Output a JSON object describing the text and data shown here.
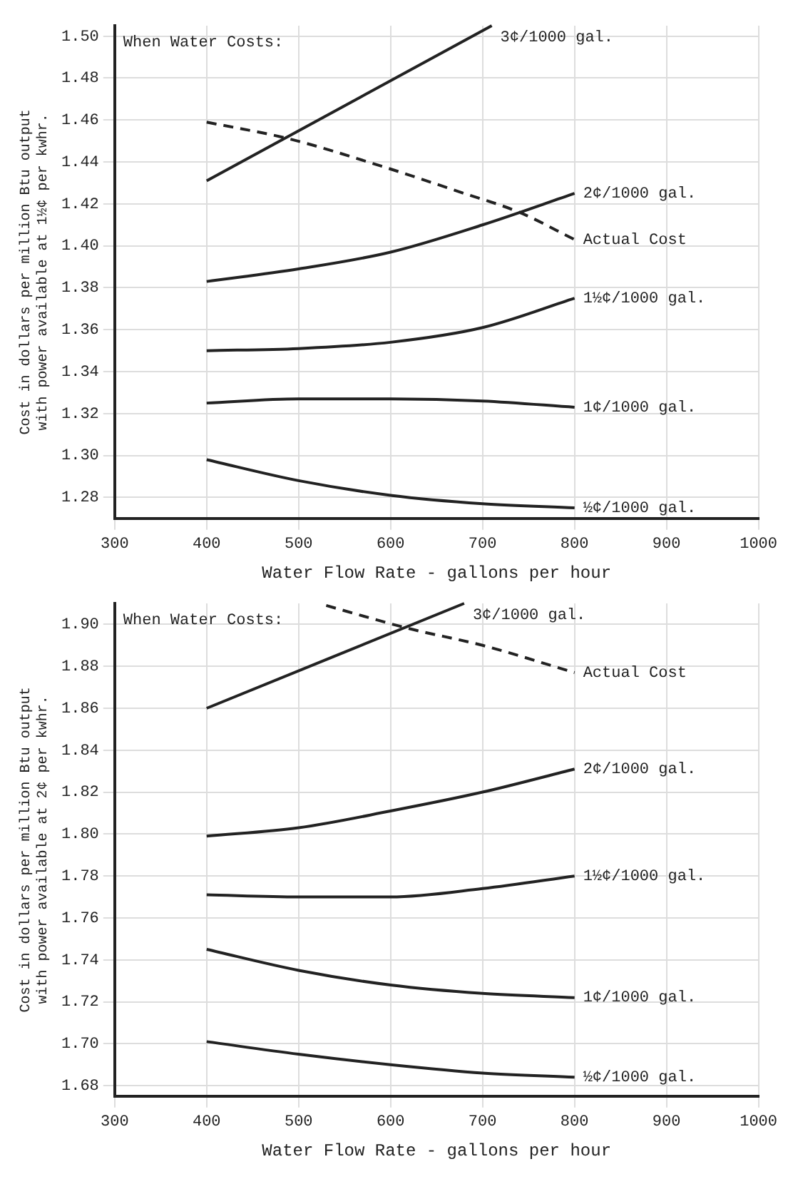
{
  "chart_data": [
    {
      "type": "line",
      "xlabel": "Water Flow Rate - gallons per hour",
      "ylabel": "Cost in dollars per million Btu output with power available at 1½¢ per kwhr.",
      "annotations": [
        "When Water Costs:"
      ],
      "xlim": [
        300,
        1000
      ],
      "xticks": [
        300,
        400,
        500,
        600,
        700,
        800,
        900,
        1000
      ],
      "ylim": [
        1.27,
        1.505
      ],
      "yticks": [
        {
          "value": 1.28,
          "label": "1.28"
        },
        {
          "value": 1.3,
          "label": "1.30"
        },
        {
          "value": 1.32,
          "label": "1.32"
        },
        {
          "value": 1.34,
          "label": "1.34"
        },
        {
          "value": 1.36,
          "label": "1.36"
        },
        {
          "value": 1.38,
          "label": "1.38"
        },
        {
          "value": 1.4,
          "label": "1.40"
        },
        {
          "value": 1.42,
          "label": "1.42"
        },
        {
          "value": 1.44,
          "label": "1.44"
        },
        {
          "value": 1.46,
          "label": "1.46"
        },
        {
          "value": 1.48,
          "label": "1.48"
        },
        {
          "value": 1.5,
          "label": "1.50"
        }
      ],
      "grid": true,
      "legend": false,
      "marker": "none",
      "series": [
        {
          "name": "3¢/1000 gal.",
          "color": "#222222",
          "x": [
            400,
            710
          ],
          "values": [
            1.431,
            1.505
          ]
        },
        {
          "name": "Actual Cost",
          "color": "#222222",
          "line_style": "dashed",
          "x": [
            400,
            490,
            590,
            680,
            740,
            800
          ],
          "values": [
            1.459,
            1.451,
            1.438,
            1.425,
            1.416,
            1.403
          ]
        },
        {
          "name": "2¢/1000 gal.",
          "color": "#222222",
          "x": [
            400,
            500,
            600,
            700,
            800
          ],
          "values": [
            1.383,
            1.389,
            1.397,
            1.41,
            1.425
          ]
        },
        {
          "name": "1½¢/1000 gal.",
          "color": "#222222",
          "x": [
            400,
            500,
            600,
            700,
            800
          ],
          "values": [
            1.35,
            1.351,
            1.354,
            1.361,
            1.375
          ]
        },
        {
          "name": "1¢/1000 gal.",
          "color": "#222222",
          "x": [
            400,
            500,
            600,
            700,
            800
          ],
          "values": [
            1.325,
            1.327,
            1.327,
            1.326,
            1.323
          ]
        },
        {
          "name": "½¢/1000 gal.",
          "color": "#222222",
          "x": [
            400,
            500,
            600,
            700,
            800
          ],
          "values": [
            1.298,
            1.288,
            1.281,
            1.277,
            1.275
          ]
        }
      ]
    },
    {
      "type": "line",
      "xlabel": "Water Flow Rate - gallons per hour",
      "ylabel": "Cost in dollars per million Btu output with power available at 2¢ per kwhr.",
      "annotations": [
        "When Water Costs:"
      ],
      "xlim": [
        300,
        1000
      ],
      "xticks": [
        300,
        400,
        500,
        600,
        700,
        800,
        900,
        1000
      ],
      "ylim": [
        1.675,
        1.91
      ],
      "yticks": [
        {
          "value": 1.68,
          "label": "1.68"
        },
        {
          "value": 1.7,
          "label": "1.70"
        },
        {
          "value": 1.72,
          "label": "1.72"
        },
        {
          "value": 1.74,
          "label": "1.74"
        },
        {
          "value": 1.76,
          "label": "1.76"
        },
        {
          "value": 1.78,
          "label": "1.78"
        },
        {
          "value": 1.8,
          "label": "1.80"
        },
        {
          "value": 1.82,
          "label": "1.82"
        },
        {
          "value": 1.84,
          "label": "1.84"
        },
        {
          "value": 1.86,
          "label": "1.86"
        },
        {
          "value": 1.88,
          "label": "1.88"
        },
        {
          "value": 1.9,
          "label": "1.90"
        }
      ],
      "grid": true,
      "legend": false,
      "marker": "none",
      "series": [
        {
          "name": "3¢/1000 gal.",
          "color": "#222222",
          "x": [
            400,
            680
          ],
          "values": [
            1.86,
            1.91
          ]
        },
        {
          "name": "Actual Cost",
          "color": "#222222",
          "line_style": "dashed",
          "x": [
            530,
            620,
            700,
            800
          ],
          "values": [
            1.909,
            1.898,
            1.89,
            1.877
          ]
        },
        {
          "name": "2¢/1000 gal.",
          "color": "#222222",
          "x": [
            400,
            500,
            600,
            700,
            800
          ],
          "values": [
            1.799,
            1.803,
            1.811,
            1.82,
            1.831
          ]
        },
        {
          "name": "1½¢/1000 gal.",
          "color": "#222222",
          "x": [
            400,
            500,
            600,
            700,
            800
          ],
          "values": [
            1.771,
            1.77,
            1.77,
            1.774,
            1.78
          ]
        },
        {
          "name": "1¢/1000 gal.",
          "color": "#222222",
          "x": [
            400,
            500,
            600,
            700,
            800
          ],
          "values": [
            1.745,
            1.735,
            1.728,
            1.724,
            1.722
          ]
        },
        {
          "name": "½¢/1000 gal.",
          "color": "#222222",
          "x": [
            400,
            500,
            600,
            700,
            800
          ],
          "values": [
            1.701,
            1.695,
            1.69,
            1.686,
            1.684
          ]
        }
      ]
    }
  ]
}
